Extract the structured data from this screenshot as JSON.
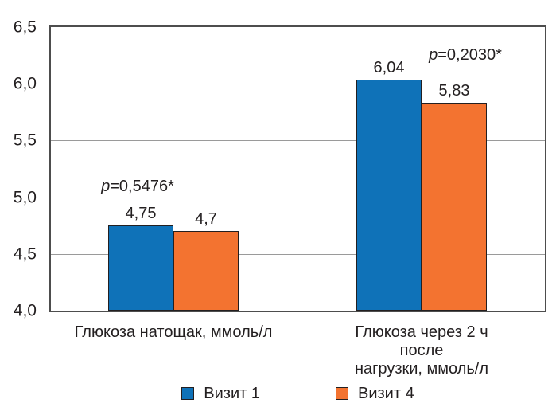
{
  "chart_data": {
    "type": "bar",
    "title": "",
    "xlabel": "",
    "ylabel": "",
    "categories": [
      "Глюкоза натощак, ммоль/л",
      "Глюкоза через 2 ч после\nнагрузки, ммоль/л"
    ],
    "series": [
      {
        "name": "Визит 1",
        "color": "#0F72B8",
        "values": [
          4.75,
          6.04
        ],
        "value_labels": [
          "4,75",
          "6,04"
        ]
      },
      {
        "name": "Визит 4",
        "color": "#F37330",
        "values": [
          4.7,
          5.83
        ],
        "value_labels": [
          "4,7",
          "5,83"
        ]
      }
    ],
    "annotations": [
      {
        "italic": "p",
        "text": "=0,5476*"
      },
      {
        "italic": "p",
        "text": "=0,2030*"
      }
    ],
    "y_axis": {
      "min": 4.0,
      "max": 6.5,
      "tick_step": 0.5,
      "ticks": [
        {
          "label": "6,5",
          "value": 6.5
        },
        {
          "label": "6,0",
          "value": 6.0
        },
        {
          "label": "5,5",
          "value": 5.5
        },
        {
          "label": "5,0",
          "value": 5.0
        },
        {
          "label": "4,5",
          "value": 4.5
        },
        {
          "label": "4,0",
          "value": 4.0
        }
      ]
    },
    "grid": true,
    "legend_position": "bottom"
  },
  "legend": {
    "items": [
      {
        "label": "Визит 1",
        "color": "#0F72B8"
      },
      {
        "label": "Визит 4",
        "color": "#F37330"
      }
    ]
  },
  "colors": {
    "bar_border": "#231F20",
    "plot_border": "#4D4D4D",
    "gridline": "#9A9A9A",
    "text": "#231F20",
    "background": "#FFFFFF"
  }
}
